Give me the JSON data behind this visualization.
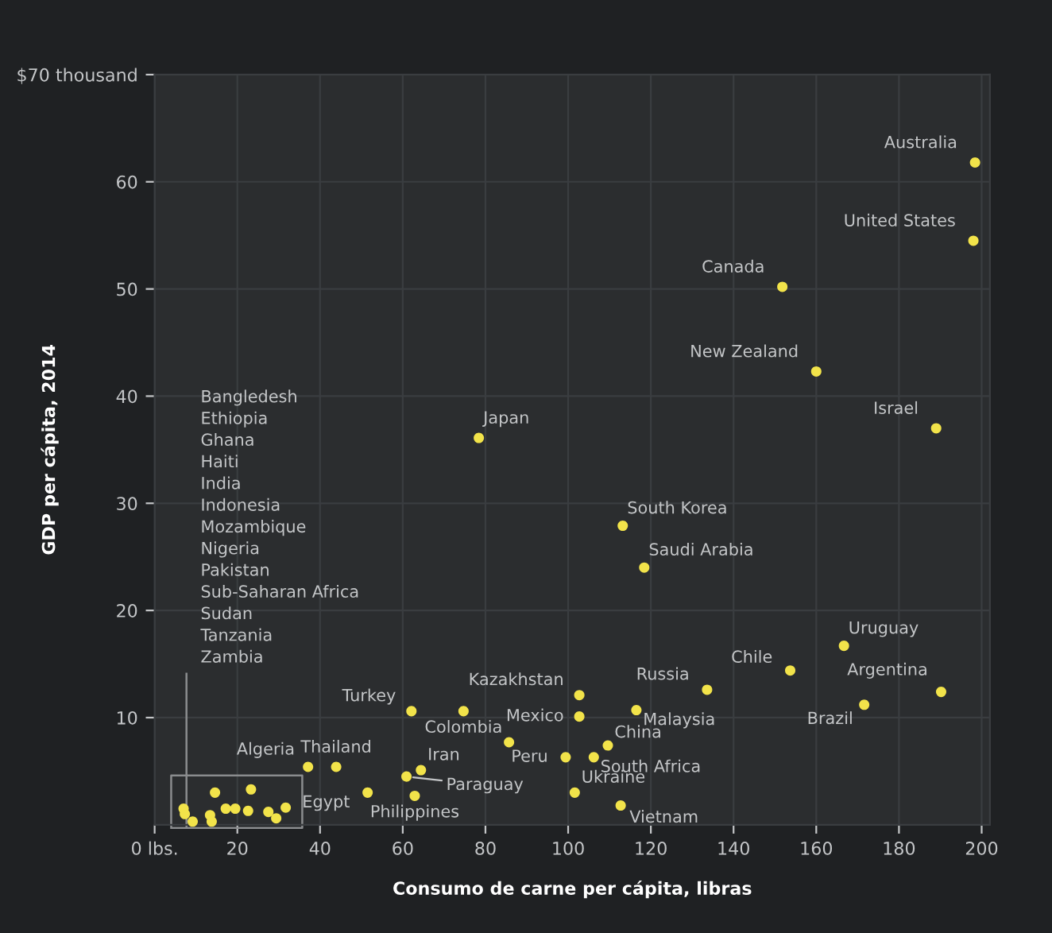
{
  "chart_data": {
    "type": "scatter",
    "xlabel": "Consumo de carne per cápita, libras",
    "ylabel": "GDP per cápita, 2014",
    "xlim": [
      0,
      202
    ],
    "ylim": [
      0,
      70
    ],
    "xticks": [
      {
        "value": 0,
        "label": "0 lbs."
      },
      20,
      40,
      60,
      80,
      100,
      120,
      140,
      160,
      180,
      200
    ],
    "yticks": [
      10,
      20,
      30,
      40,
      50,
      60,
      {
        "value": 70,
        "label": "$70 thousand"
      }
    ],
    "grid": true,
    "marker": "circle",
    "series": [
      {
        "color": "#f2e34a",
        "x": [
          198.4,
          198,
          151.8,
          160,
          189,
          78.4,
          113.2,
          118.4,
          166.7,
          153.7,
          133.6,
          190.2,
          171.6,
          116.5,
          102.7,
          102.7,
          62.1,
          74.7,
          37.1,
          43.9,
          51.5,
          64.4,
          60.9,
          62.9,
          99.4,
          109.6,
          106.2,
          101.6,
          112.7,
          85.7,
          7.0,
          7.3,
          9.2,
          13.4,
          13.8,
          14.6,
          17.2,
          19.5,
          22.6,
          23.3,
          27.5,
          29.4,
          31.7
        ],
        "values": [
          61.8,
          54.5,
          50.2,
          42.3,
          37.0,
          36.1,
          27.9,
          24.0,
          16.7,
          14.4,
          12.6,
          12.4,
          11.2,
          10.7,
          12.1,
          10.1,
          10.6,
          10.6,
          5.4,
          5.4,
          3.0,
          5.1,
          4.5,
          2.7,
          6.3,
          7.4,
          6.3,
          3.0,
          1.8,
          7.7,
          1.5,
          1.0,
          0.3,
          0.9,
          0.3,
          3.0,
          1.5,
          1.5,
          1.3,
          3.3,
          1.2,
          0.6,
          1.6
        ]
      }
    ],
    "annotations": [
      {
        "text": "Australia",
        "x": 198.4,
        "y": 61.8
      },
      {
        "text": "United States",
        "x": 198,
        "y": 54.5
      },
      {
        "text": "Canada",
        "x": 151.8,
        "y": 50.2
      },
      {
        "text": "New Zealand",
        "x": 160,
        "y": 42.3
      },
      {
        "text": "Israel",
        "x": 189,
        "y": 37.0
      },
      {
        "text": "Japan",
        "x": 78.4,
        "y": 36.1
      },
      {
        "text": "South Korea",
        "x": 113.2,
        "y": 27.9
      },
      {
        "text": "Saudi Arabia",
        "x": 118.4,
        "y": 24.0
      },
      {
        "text": "Uruguay",
        "x": 166.7,
        "y": 16.7
      },
      {
        "text": "Chile",
        "x": 153.7,
        "y": 14.4
      },
      {
        "text": "Russia",
        "x": 133.6,
        "y": 12.6
      },
      {
        "text": "Argentina",
        "x": 190.2,
        "y": 12.4
      },
      {
        "text": "Brazil",
        "x": 171.6,
        "y": 11.2
      },
      {
        "text": "Malaysia",
        "x": 116.5,
        "y": 10.7
      },
      {
        "text": "Kazakhstan",
        "x": 102.7,
        "y": 12.1
      },
      {
        "text": "Mexico",
        "x": 102.7,
        "y": 10.1
      },
      {
        "text": "Turkey",
        "x": 62.1,
        "y": 10.6
      },
      {
        "text": "Colombia",
        "x": 74.7,
        "y": 10.6
      },
      {
        "text": "Algeria",
        "x": 37.1,
        "y": 5.4
      },
      {
        "text": "Thailand",
        "x": 43.9,
        "y": 5.4
      },
      {
        "text": "Egypt",
        "x": 51.5,
        "y": 3.0
      },
      {
        "text": "Iran",
        "x": 64.4,
        "y": 5.1
      },
      {
        "text": "Paraguay",
        "x": 60.9,
        "y": 4.5
      },
      {
        "text": "Philippines",
        "x": 62.9,
        "y": 2.7
      },
      {
        "text": "Peru",
        "x": 99.4,
        "y": 6.3
      },
      {
        "text": "China",
        "x": 109.6,
        "y": 7.4
      },
      {
        "text": "South Africa",
        "x": 106.2,
        "y": 6.3
      },
      {
        "text": "Ukraine",
        "x": 101.6,
        "y": 3.0
      },
      {
        "text": "Vietnam",
        "x": 112.7,
        "y": 1.8
      },
      "Bangledesh\nEthiopia\nGhana\nHaiti\nIndia\nIndonesia\nMozambique\nNigeria\nPakistan\nSub-Saharan Africa\nSudan\nTanzania\nZambia"
    ]
  }
}
